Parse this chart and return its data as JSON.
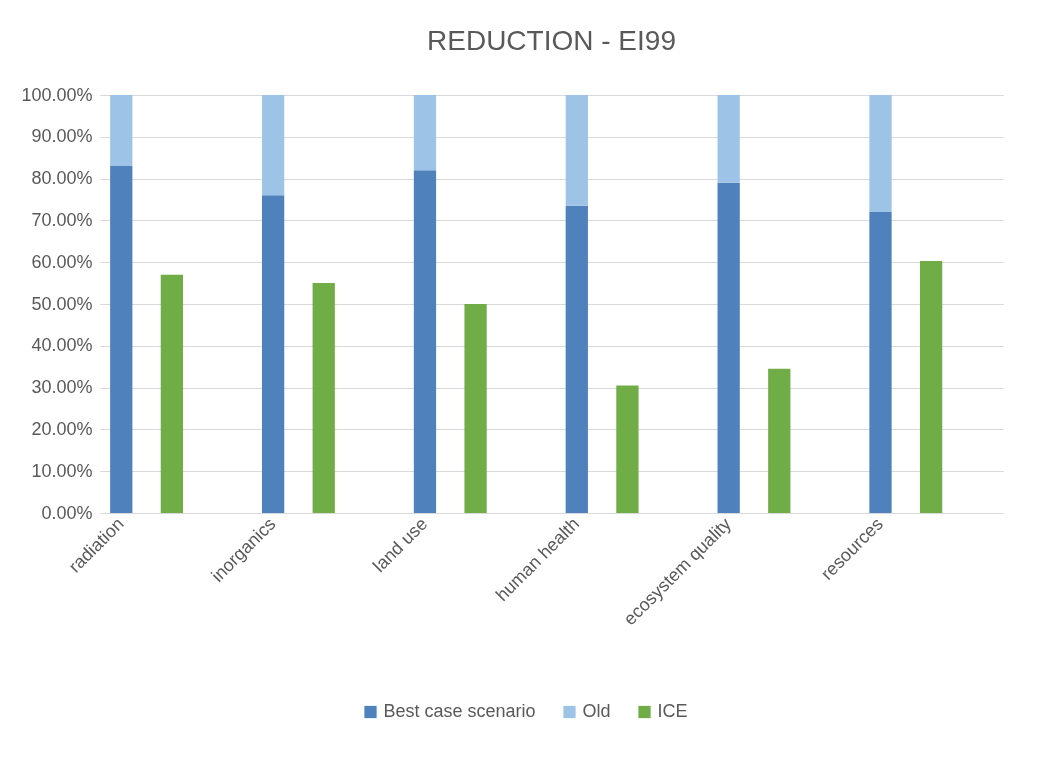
{
  "chart_data": {
    "type": "bar",
    "title": "REDUCTION - EI99",
    "categories": [
      "radiation",
      null,
      null,
      "inorganics",
      null,
      null,
      "land use",
      null,
      null,
      "human health",
      null,
      null,
      "ecosystem quality",
      null,
      null,
      "resources",
      null,
      null
    ],
    "stacked": true,
    "series": [
      {
        "name": "Best case scenario",
        "color": "#4f81bd",
        "values": [
          83,
          null,
          null,
          76,
          null,
          null,
          82,
          null,
          null,
          73.5,
          null,
          null,
          79,
          null,
          null,
          72,
          null,
          null
        ]
      },
      {
        "name": "Old",
        "color": "#9dc3e6",
        "values": [
          17,
          null,
          null,
          24,
          null,
          null,
          18,
          null,
          null,
          26.5,
          null,
          null,
          21,
          null,
          null,
          28,
          null,
          null
        ]
      },
      {
        "name": "ICE",
        "color": "#70ad47",
        "values": [
          null,
          57,
          null,
          null,
          55,
          null,
          null,
          50,
          null,
          null,
          30.5,
          null,
          null,
          34.5,
          null,
          null,
          60.3,
          null
        ]
      }
    ],
    "ylim": [
      0,
      100
    ],
    "yticks": [
      {
        "value": 0,
        "label": "0.00%"
      },
      {
        "value": 10,
        "label": "10.00%"
      },
      {
        "value": 20,
        "label": "20.00%"
      },
      {
        "value": 30,
        "label": "30.00%"
      },
      {
        "value": 40,
        "label": "40.00%"
      },
      {
        "value": 50,
        "label": "50.00%"
      },
      {
        "value": 60,
        "label": "60.00%"
      },
      {
        "value": 70,
        "label": "70.00%"
      },
      {
        "value": 80,
        "label": "80.00%"
      },
      {
        "value": 90,
        "label": "90.00%"
      },
      {
        "value": 100,
        "label": "100.00%"
      }
    ],
    "grid": "y",
    "legend": "bottom"
  }
}
